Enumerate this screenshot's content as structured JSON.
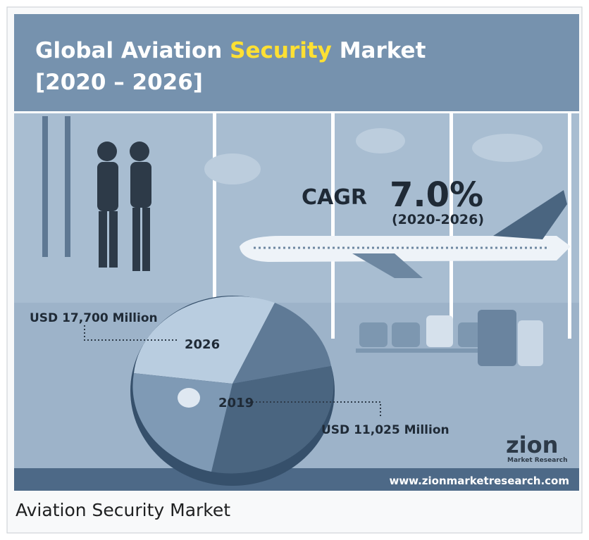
{
  "title": {
    "part1": "Global Aviation",
    "highlight": "Security",
    "part2": "Market",
    "years": "[2020 – 2026]"
  },
  "cagr": {
    "label": "CAGR",
    "value": "7.0%",
    "period": "(2020-2026)"
  },
  "forecast": {
    "value": "USD 17,700 Million",
    "year": "2026"
  },
  "base": {
    "year": "2019",
    "value": "USD 11,025 Million"
  },
  "logo": {
    "name": "zion",
    "sub": "Market Research"
  },
  "website": "www.zionmarketresearch.com",
  "caption": "Aviation Security Market"
}
